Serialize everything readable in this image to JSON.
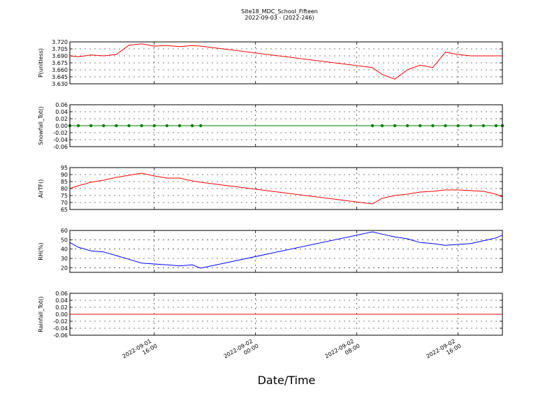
{
  "chart_data": [
    {
      "type": "line",
      "title": "Site18_MDC_School_Fifteen",
      "subtitle": "2022-09-03 - (2022-246)",
      "ylabel": "P(unitless)",
      "x": [
        "2022-09-01 09:20",
        "2022-09-01 10:00",
        "2022-09-01 11:00",
        "2022-09-01 12:00",
        "2022-09-01 13:00",
        "2022-09-01 14:00",
        "2022-09-01 15:00",
        "2022-09-01 16:00",
        "2022-09-01 17:00",
        "2022-09-01 18:00",
        "2022-09-01 19:00",
        "2022-09-01 19:40",
        "2022-09-02 09:14",
        "2022-09-02 10:00",
        "2022-09-02 11:00",
        "2022-09-02 12:00",
        "2022-09-02 13:00",
        "2022-09-02 14:00",
        "2022-09-02 15:00",
        "2022-09-02 16:00",
        "2022-09-02 17:00",
        "2022-09-02 18:00",
        "2022-09-02 19:00",
        "2022-09-02 19:30"
      ],
      "series": [
        {
          "color": "#ff0000",
          "values": [
            3.69,
            3.688,
            3.692,
            3.69,
            3.693,
            3.713,
            3.716,
            3.711,
            3.712,
            3.71,
            3.712,
            3.711,
            3.665,
            3.65,
            3.64,
            3.66,
            3.67,
            3.665,
            3.698,
            3.693,
            3.69,
            3.69,
            3.69,
            3.69
          ]
        }
      ],
      "ylim": [
        3.63,
        3.72
      ],
      "yticks": [
        {
          "value": 3.63,
          "label": "3.630"
        },
        3.645,
        {
          "value": 3.66,
          "label": "3.660"
        },
        3.675,
        {
          "value": 3.69,
          "label": "3.690"
        },
        3.705,
        {
          "value": 3.72,
          "label": "3.720"
        }
      ],
      "grid": true
    },
    {
      "type": "line",
      "ylabel": "Snowfall_Tot()",
      "x": [
        "2022-09-01 09:20",
        "2022-09-01 10:00",
        "2022-09-01 11:00",
        "2022-09-01 12:00",
        "2022-09-01 13:00",
        "2022-09-01 14:00",
        "2022-09-01 15:00",
        "2022-09-01 16:00",
        "2022-09-01 17:00",
        "2022-09-01 18:00",
        "2022-09-01 19:00",
        "2022-09-01 19:40",
        "2022-09-02 09:14",
        "2022-09-02 10:00",
        "2022-09-02 11:00",
        "2022-09-02 12:00",
        "2022-09-02 13:00",
        "2022-09-02 14:00",
        "2022-09-02 15:00",
        "2022-09-02 16:00",
        "2022-09-02 17:00",
        "2022-09-02 18:00",
        "2022-09-02 19:00",
        "2022-09-02 19:30"
      ],
      "series": [
        {
          "color": "#008000",
          "marker": true,
          "values": [
            0,
            0,
            0,
            0,
            0,
            0,
            0,
            0,
            0,
            0,
            0,
            0,
            0,
            0,
            0,
            0,
            0,
            0,
            0,
            0,
            0,
            0,
            0,
            0
          ]
        }
      ],
      "ylim": [
        -0.06,
        0.06
      ],
      "yticks": [
        -0.06,
        -0.04,
        -0.02,
        {
          "value": 0,
          "label": "0.00"
        },
        0.02,
        0.04,
        0.06
      ],
      "grid": true
    },
    {
      "type": "line",
      "ylabel": "AirTF()",
      "x": [
        "2022-09-01 09:20",
        "2022-09-01 10:00",
        "2022-09-01 11:00",
        "2022-09-01 12:00",
        "2022-09-01 13:00",
        "2022-09-01 14:00",
        "2022-09-01 15:00",
        "2022-09-01 16:00",
        "2022-09-01 17:00",
        "2022-09-01 18:00",
        "2022-09-01 19:00",
        "2022-09-01 19:40",
        "2022-09-02 09:14",
        "2022-09-02 10:00",
        "2022-09-02 11:00",
        "2022-09-02 12:00",
        "2022-09-02 13:00",
        "2022-09-02 14:00",
        "2022-09-02 15:00",
        "2022-09-02 16:00",
        "2022-09-02 17:00",
        "2022-09-02 18:00",
        "2022-09-02 19:00",
        "2022-09-02 19:30"
      ],
      "series": [
        {
          "color": "#ff0000",
          "values": [
            80,
            82,
            84.5,
            86,
            88,
            89.5,
            91,
            89,
            87.5,
            87.5,
            85.5,
            84.5,
            69,
            73,
            75,
            76,
            77.5,
            78,
            79,
            79,
            78.5,
            78,
            76,
            74
          ]
        }
      ],
      "ylim": [
        65,
        95
      ],
      "yticks": [
        65,
        70,
        75,
        80,
        85,
        90,
        95
      ],
      "grid": true
    },
    {
      "type": "line",
      "ylabel": "RH(%)",
      "x": [
        "2022-09-01 09:20",
        "2022-09-01 10:00",
        "2022-09-01 11:00",
        "2022-09-01 12:00",
        "2022-09-01 13:00",
        "2022-09-01 14:00",
        "2022-09-01 15:00",
        "2022-09-01 16:00",
        "2022-09-01 17:00",
        "2022-09-01 18:00",
        "2022-09-01 19:00",
        "2022-09-01 19:40",
        "2022-09-02 09:14",
        "2022-09-02 10:00",
        "2022-09-02 11:00",
        "2022-09-02 12:00",
        "2022-09-02 13:00",
        "2022-09-02 14:00",
        "2022-09-02 15:00",
        "2022-09-02 16:00",
        "2022-09-02 17:00",
        "2022-09-02 18:00",
        "2022-09-02 19:00",
        "2022-09-02 19:30"
      ],
      "series": [
        {
          "color": "#0000ff",
          "values": [
            47,
            42,
            38,
            37,
            33,
            29,
            25,
            24,
            23,
            22,
            23,
            19.5,
            58.5,
            56,
            53,
            51,
            47,
            46,
            44,
            45,
            46,
            49,
            52,
            55
          ]
        }
      ],
      "ylim": [
        15,
        60
      ],
      "yticks": [
        20,
        30,
        40,
        50,
        60
      ],
      "grid": true
    },
    {
      "type": "line",
      "ylabel": "Rainfall_Tot()",
      "xlabel": "Date/Time",
      "x": [
        "2022-09-01 09:20",
        "2022-09-01 10:00",
        "2022-09-01 11:00",
        "2022-09-01 12:00",
        "2022-09-01 13:00",
        "2022-09-01 14:00",
        "2022-09-01 15:00",
        "2022-09-01 16:00",
        "2022-09-01 17:00",
        "2022-09-01 18:00",
        "2022-09-01 19:00",
        "2022-09-01 19:40",
        "2022-09-02 09:14",
        "2022-09-02 10:00",
        "2022-09-02 11:00",
        "2022-09-02 12:00",
        "2022-09-02 13:00",
        "2022-09-02 14:00",
        "2022-09-02 15:00",
        "2022-09-02 16:00",
        "2022-09-02 17:00",
        "2022-09-02 18:00",
        "2022-09-02 19:00",
        "2022-09-02 19:30"
      ],
      "series": [
        {
          "color": "#ff0000",
          "values": [
            0,
            0,
            0,
            0,
            0,
            0,
            0,
            0,
            0,
            0,
            0,
            0,
            0,
            0,
            0,
            0,
            0,
            0,
            0,
            0,
            0,
            0,
            0,
            0
          ]
        }
      ],
      "ylim": [
        -0.06,
        0.06
      ],
      "yticks": [
        -0.06,
        -0.04,
        -0.02,
        {
          "value": 0,
          "label": "0.00"
        },
        0.02,
        0.04,
        0.06
      ],
      "grid": true,
      "xlim": [
        "2022-09-01 09:20",
        "2022-09-02 19:30"
      ],
      "xticks": [
        "2022-09-01 16:00",
        "2022-09-02 00:00",
        "2022-09-02 08:00",
        "2022-09-02 16:00"
      ]
    }
  ]
}
